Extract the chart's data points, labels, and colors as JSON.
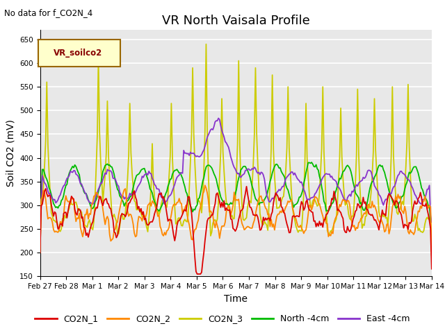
{
  "title": "VR North Vaisala Profile",
  "subtitle": "No data for f_CO2N_4",
  "legend_label": "VR_soilco2",
  "xlabel": "Time",
  "ylabel": "Soil CO2 (mV)",
  "ylim": [
    150,
    670
  ],
  "yticks": [
    150,
    200,
    250,
    300,
    350,
    400,
    450,
    500,
    550,
    600,
    650
  ],
  "series_colors": {
    "CO2N_1": "#dd0000",
    "CO2N_2": "#ff8800",
    "CO2N_3": "#cccc00",
    "North -4cm": "#00bb00",
    "East -4cm": "#8833cc"
  },
  "bg_color": "#e8e8e8",
  "grid_color": "#ffffff",
  "tick_labels": [
    "Feb 27",
    "Feb 28",
    "Mar 1",
    "Mar 2",
    "Mar 3",
    "Mar 4",
    "Mar 5",
    "Mar 6",
    "Mar 7",
    "Mar 8",
    "Mar 9",
    "Mar 10",
    "Mar 11",
    "Mar 12",
    "Mar 13",
    "Mar 14"
  ],
  "title_fontsize": 13,
  "axis_label_fontsize": 10,
  "tick_fontsize": 7.5,
  "legend_fontsize": 9
}
